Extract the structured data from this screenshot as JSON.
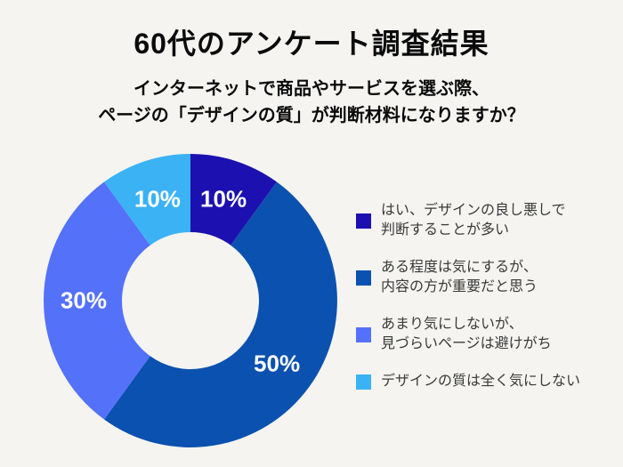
{
  "page": {
    "background_color": "#f5f4f1"
  },
  "header": {
    "title": "60代のアンケート調査結果",
    "subtitle_line1": "インターネットで商品やサービスを選ぶ際、",
    "subtitle_line2": "ページの「デザインの質」が判断材料になりますか？"
  },
  "chart_data": {
    "type": "pie",
    "variant": "donut",
    "start_angle_deg": 0,
    "direction": "clockwise",
    "outer_radius_px": 165,
    "inner_radius_px": 77,
    "label_radius_px": 120,
    "value_label_color": "#ffffff",
    "segments": [
      {
        "label": "はい、デザインの良し悪しで判断することが多い",
        "value": 10,
        "display": "10%",
        "color": "#1c11b0"
      },
      {
        "label": "ある程度は気にするが、内容の方が重要だと思う",
        "value": 50,
        "display": "50%",
        "color": "#0b51af"
      },
      {
        "label": "あまり気にしないが、見づらいページは避けがち",
        "value": 30,
        "display": "30%",
        "color": "#5471fa"
      },
      {
        "label": "デザインの質は全く気にしない",
        "value": 10,
        "display": "10%",
        "color": "#3bb2f4"
      }
    ]
  },
  "legend": {
    "items": [
      {
        "lines": [
          "はい、デザインの良し悪しで",
          "判断することが多い"
        ],
        "color": "#1c11b0"
      },
      {
        "lines": [
          "ある程度は気にするが、",
          "内容の方が重要だと思う"
        ],
        "color": "#0b51af"
      },
      {
        "lines": [
          "あまり気にしないが、",
          "見づらいページは避けがち"
        ],
        "color": "#5471fa"
      },
      {
        "lines": [
          "デザインの質は全く気にしない"
        ],
        "color": "#3bb2f4"
      }
    ]
  }
}
